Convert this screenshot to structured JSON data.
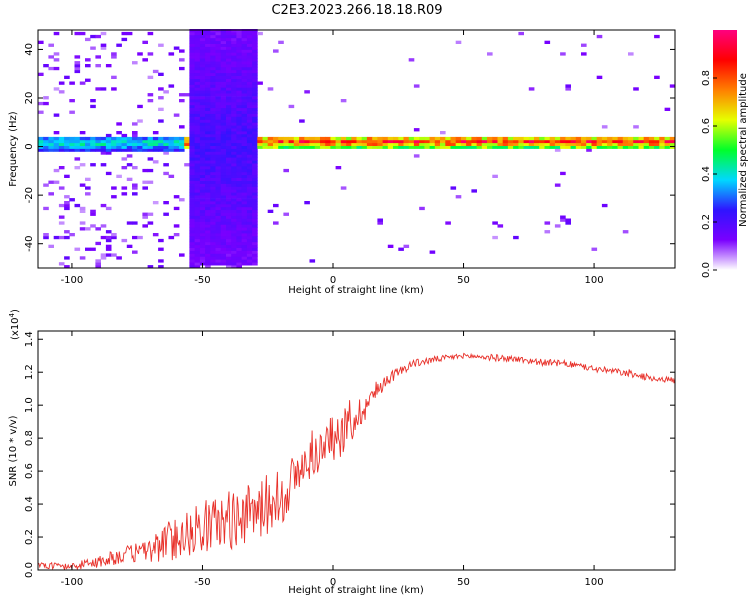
{
  "title": "C2E3.2023.266.18.18.R09",
  "chart_data": [
    {
      "type": "heatmap",
      "xlabel": "Height of straight line (km)",
      "ylabel": "Frequency (Hz)",
      "xlim": [
        -113,
        131
      ],
      "ylim": [
        -50,
        48
      ],
      "xticks": [
        -100,
        -50,
        0,
        50,
        100
      ],
      "yticks": [
        -40,
        -20,
        0,
        20,
        40
      ],
      "colorbar": {
        "label": "Normalized spectral amplitude",
        "range": [
          0.0,
          1.0
        ],
        "ticks": [
          "0.0",
          "0.2",
          "0.4",
          "0.6",
          "0.8"
        ],
        "colormap": [
          "#ffffff",
          "#7a00ff",
          "#2f14ff",
          "#00d8ff",
          "#00ff2a",
          "#e6ff00",
          "#ff7f00",
          "#ff0000",
          "#ff007f"
        ]
      },
      "regions": [
        {
          "x_range": [
            -113,
            -57
          ],
          "freq_center": 1,
          "freq_halfwidth": 3,
          "peak_amplitude": 0.5,
          "noise_level": 0.2
        },
        {
          "x_range": [
            -56,
            -29
          ],
          "freq_center": 0,
          "freq_halfwidth": 50,
          "peak_amplitude": 0.25,
          "noise_level": 0.6
        },
        {
          "x_range": [
            -29,
            131
          ],
          "freq_center": 1.5,
          "freq_halfwidth": 2.5,
          "peak_amplitude": 1.0,
          "noise_level": 0.02
        }
      ]
    },
    {
      "type": "line",
      "xlabel": "Height of straight line (km)",
      "ylabel": "SNR (10 * v/v)",
      "y_scale_note": "(x10",
      "y_scale_exponent": "4",
      "y_scale_close": ")",
      "xlim": [
        -113,
        131
      ],
      "ylim": [
        0.0,
        1.45
      ],
      "xticks": [
        -100,
        -50,
        0,
        50,
        100
      ],
      "yticks": [
        "0.0",
        "0.2",
        "0.4",
        "0.6",
        "0.8",
        "1.0",
        "1.2",
        "1.4"
      ],
      "series": [
        {
          "color": "#e8312a",
          "x": [
            -113,
            -100,
            -90,
            -80,
            -70,
            -60,
            -50,
            -40,
            -30,
            -20,
            -10,
            0,
            5,
            10,
            15,
            20,
            30,
            40,
            50,
            60,
            70,
            80,
            90,
            100,
            110,
            120,
            131
          ],
          "y": [
            0.03,
            0.02,
            0.05,
            0.09,
            0.12,
            0.2,
            0.26,
            0.3,
            0.35,
            0.45,
            0.65,
            0.8,
            0.85,
            0.95,
            1.05,
            1.15,
            1.25,
            1.28,
            1.3,
            1.29,
            1.28,
            1.26,
            1.25,
            1.22,
            1.2,
            1.17,
            1.15
          ],
          "noise_amplitude": [
            0.02,
            0.02,
            0.04,
            0.05,
            0.08,
            0.14,
            0.16,
            0.18,
            0.18,
            0.2,
            0.12,
            0.14,
            0.15,
            0.1,
            0.08,
            0.04,
            0.025,
            0.02,
            0.015,
            0.02,
            0.02,
            0.02,
            0.02,
            0.02,
            0.02,
            0.02,
            0.02
          ]
        }
      ]
    }
  ]
}
